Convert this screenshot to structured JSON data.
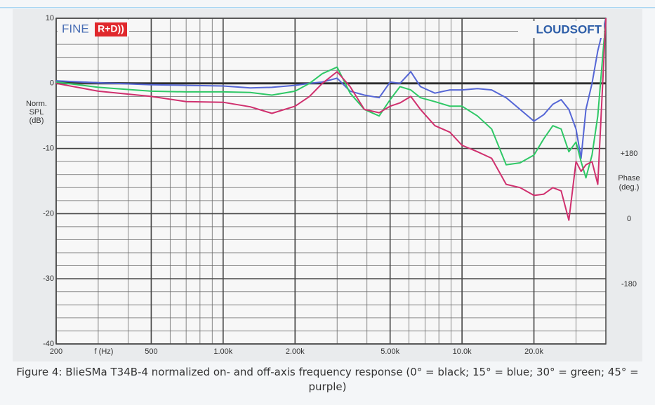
{
  "chart_data": {
    "type": "line",
    "logos": {
      "left": "FINE",
      "left_badge": "R+D))",
      "right": "LOUDSOFT"
    },
    "ylabel": [
      "Norm.",
      "SPL",
      "(dB)"
    ],
    "y2label": [
      "Phase",
      "(deg.)"
    ],
    "xlabel": "f (Hz)",
    "caption": "Figure 4: BlieSMa T34B-4 normalized on- and off-axis frequency response (0° = black; 15° = blue; 30° = green; 45° = purple)",
    "xscale": "log",
    "xlim": [
      200,
      40000
    ],
    "xticks": [
      200,
      500,
      {
        "value": 1000,
        "label": "1.00k"
      },
      {
        "value": 2000,
        "label": "2.00k"
      },
      {
        "value": 5000,
        "label": "5.00k"
      },
      {
        "value": 10000,
        "label": "10.0k"
      },
      {
        "value": 20000,
        "label": "20.0k"
      }
    ],
    "minor_xticks": [
      300,
      400,
      600,
      700,
      800,
      900,
      3000,
      4000,
      6000,
      7000,
      8000,
      9000,
      30000,
      40000
    ],
    "ylim": [
      -40,
      10
    ],
    "yticks": [
      10,
      0,
      -10,
      -20,
      -30,
      -40
    ],
    "minor_yticks": [
      8,
      6,
      4,
      2,
      -2,
      -4,
      -6,
      -8,
      -12,
      -14,
      -16,
      -18,
      -22,
      -24,
      -26,
      -28,
      -32,
      -34,
      -36,
      -38
    ],
    "y2lim": [
      -345,
      555
    ],
    "y2ticks": [
      {
        "value": 180,
        "label": "+180"
      },
      0,
      -180
    ],
    "grid": true,
    "x": [
      200,
      300,
      500,
      700,
      1000,
      1300,
      1600,
      2000,
      2300,
      2600,
      3000,
      3400,
      3900,
      4500,
      5000,
      5500,
      6100,
      6700,
      7700,
      8900,
      10000,
      11600,
      13300,
      15300,
      17500,
      20000,
      22000,
      24000,
      26000,
      28000,
      30000,
      31500,
      33000,
      35000,
      37000,
      40000
    ],
    "series": [
      {
        "color": "#2b2b2b",
        "values": [
          0.3,
          0.1,
          0,
          0,
          0,
          0,
          0,
          0,
          0,
          0,
          0,
          0,
          0,
          0,
          0,
          0,
          0,
          0,
          0,
          0,
          0,
          0,
          0,
          0,
          0,
          0,
          0,
          0,
          0,
          0,
          0,
          0,
          0,
          0,
          0,
          0
        ]
      },
      {
        "color": "#5566d6",
        "values": [
          0.4,
          0.1,
          -0.2,
          -0.3,
          -0.4,
          -0.7,
          -0.6,
          -0.3,
          0,
          0.2,
          0.8,
          -1.2,
          -1.8,
          -2.2,
          0.2,
          0,
          1.8,
          -0.5,
          -1.5,
          -1,
          -1,
          -0.8,
          -1,
          -2.2,
          -4,
          -5.8,
          -4.8,
          -3.2,
          -2.5,
          -4,
          -7,
          -11.5,
          -4,
          0,
          5,
          10
        ]
      },
      {
        "color": "#2fc866",
        "values": [
          0.2,
          -0.6,
          -1.2,
          -1.3,
          -1.3,
          -1.4,
          -1.8,
          -1.2,
          0,
          1.5,
          2.5,
          -1.5,
          -4,
          -5,
          -2.5,
          -0.5,
          -1,
          -2.2,
          -2.8,
          -3.5,
          -3.5,
          -5,
          -7,
          -12.5,
          -12.2,
          -11,
          -8.5,
          -6.5,
          -7,
          -10.5,
          -9,
          -12,
          -14.5,
          -11,
          -5,
          10
        ]
      },
      {
        "color": "#d0306e",
        "values": [
          0,
          -1.2,
          -2,
          -2.8,
          -2.9,
          -3.6,
          -4.6,
          -3.5,
          -2,
          0,
          1.8,
          -0.5,
          -4,
          -4.5,
          -3.5,
          -3,
          -2,
          -4,
          -6.5,
          -7.5,
          -9.5,
          -10.5,
          -11.5,
          -15.5,
          -16,
          -17.2,
          -17,
          -16,
          -16.5,
          -21,
          -12,
          -13.5,
          -12.5,
          -12,
          -15.5,
          10
        ]
      }
    ]
  }
}
